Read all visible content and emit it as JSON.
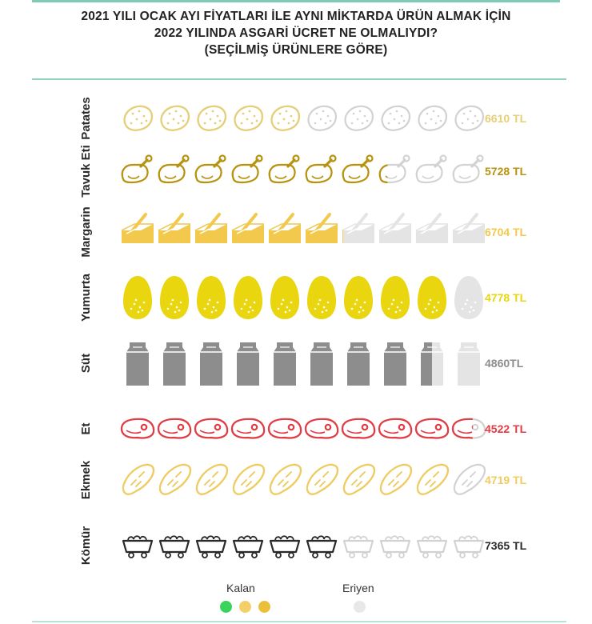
{
  "title": {
    "line1": "2021 YILI OCAK AYI FİYATLARI İLE AYNI MİKTARDA ÜRÜN ALMAK İÇİN",
    "line2": "2022 YILINDA ASGARİ ÜCRET NE OLMALIYDI?",
    "line3": "(SEÇİLMİŞ ÜRÜNLERE GÖRE)"
  },
  "colors": {
    "faded": "#e4e4e4",
    "faded_stroke": "#d2d2d2"
  },
  "chart_data": {
    "type": "pictogram",
    "icons_per_row": 10,
    "series": [
      {
        "name": "Patates",
        "icon": "potato-icon",
        "filled": 5.0,
        "label": "6610 TL",
        "color": "#e7cf75"
      },
      {
        "name": "Tavuk Eti",
        "icon": "chicken-icon",
        "filled": 7.3,
        "label": "5728 TL",
        "color": "#b8930d"
      },
      {
        "name": "Margarin",
        "icon": "margarine-icon",
        "filled": 6.1,
        "label": "6704 TL",
        "color": "#f2c94c"
      },
      {
        "name": "Yumurta",
        "icon": "egg-icon",
        "filled": 9.0,
        "label": "4778 TL",
        "color": "#ead60e"
      },
      {
        "name": "Süt",
        "icon": "milk-icon",
        "filled": 8.5,
        "label": "4860TL",
        "color": "#8d8d8d"
      },
      {
        "name": "Et",
        "icon": "meat-icon",
        "filled": 9.6,
        "label": "4522 TL",
        "color": "#e23b43"
      },
      {
        "name": "Ekmek",
        "icon": "bread-icon",
        "filled": 9.0,
        "label": "4719 TL",
        "color": "#f0cc5c"
      },
      {
        "name": "Kömür",
        "icon": "coal-cart-icon",
        "filled": 6.0,
        "label": "7365 TL",
        "color": "#2a2a2a"
      }
    ]
  },
  "legend": {
    "kalan_label": "Kalan",
    "kalan_colors": [
      "#39d45a",
      "#f3cf67",
      "#ecbf3a"
    ],
    "eriyen_label": "Eriyen",
    "eriyen_color": "#e8e8e8"
  }
}
